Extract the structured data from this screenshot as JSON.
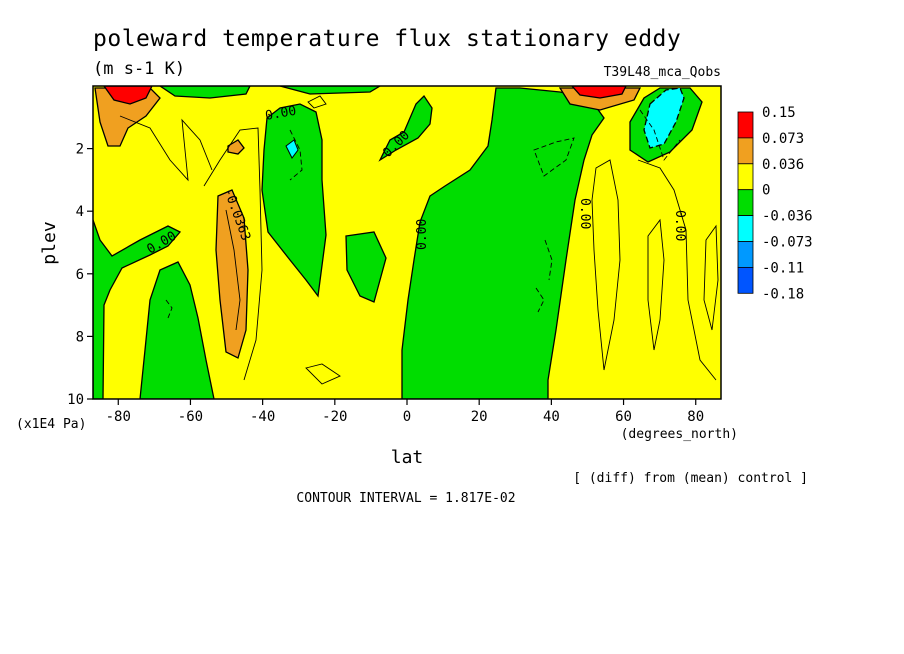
{
  "chart_data": {
    "type": "heatmap",
    "title": "poleward temperature flux stationary eddy",
    "units": "(m s-1 K)",
    "run_label": "T39L48_mca_Qobs",
    "xlabel": "lat",
    "xunits": "(degrees_north)",
    "ylabel": "plev",
    "yunits": "(x1E4 Pa)",
    "xlim": [
      -87,
      87
    ],
    "ylim": [
      10,
      0
    ],
    "x_ticks": [
      "-80",
      "-60",
      "-40",
      "-20",
      "0",
      "20",
      "40",
      "60",
      "80"
    ],
    "y_ticks": [
      "2",
      "4",
      "6",
      "8",
      "10"
    ],
    "legend_levels": [
      "0.15",
      "0.073",
      "0.036",
      "0",
      "-0.036",
      "-0.073",
      "-0.11",
      "-0.18"
    ],
    "colors": [
      "#ff0000",
      "#f0a020",
      "#ffff00",
      "#00dd00",
      "#00ffff",
      "#0099ff",
      "#0055ff"
    ],
    "note": "[ (diff) from (mean) control ]",
    "contour_interval": "CONTOUR INTERVAL = 1.817E-02",
    "contour_labels": [
      "0.00",
      "0.00",
      "0.00",
      "0.00",
      "-0.0363",
      "0.00",
      "0.00",
      "0.00"
    ]
  }
}
